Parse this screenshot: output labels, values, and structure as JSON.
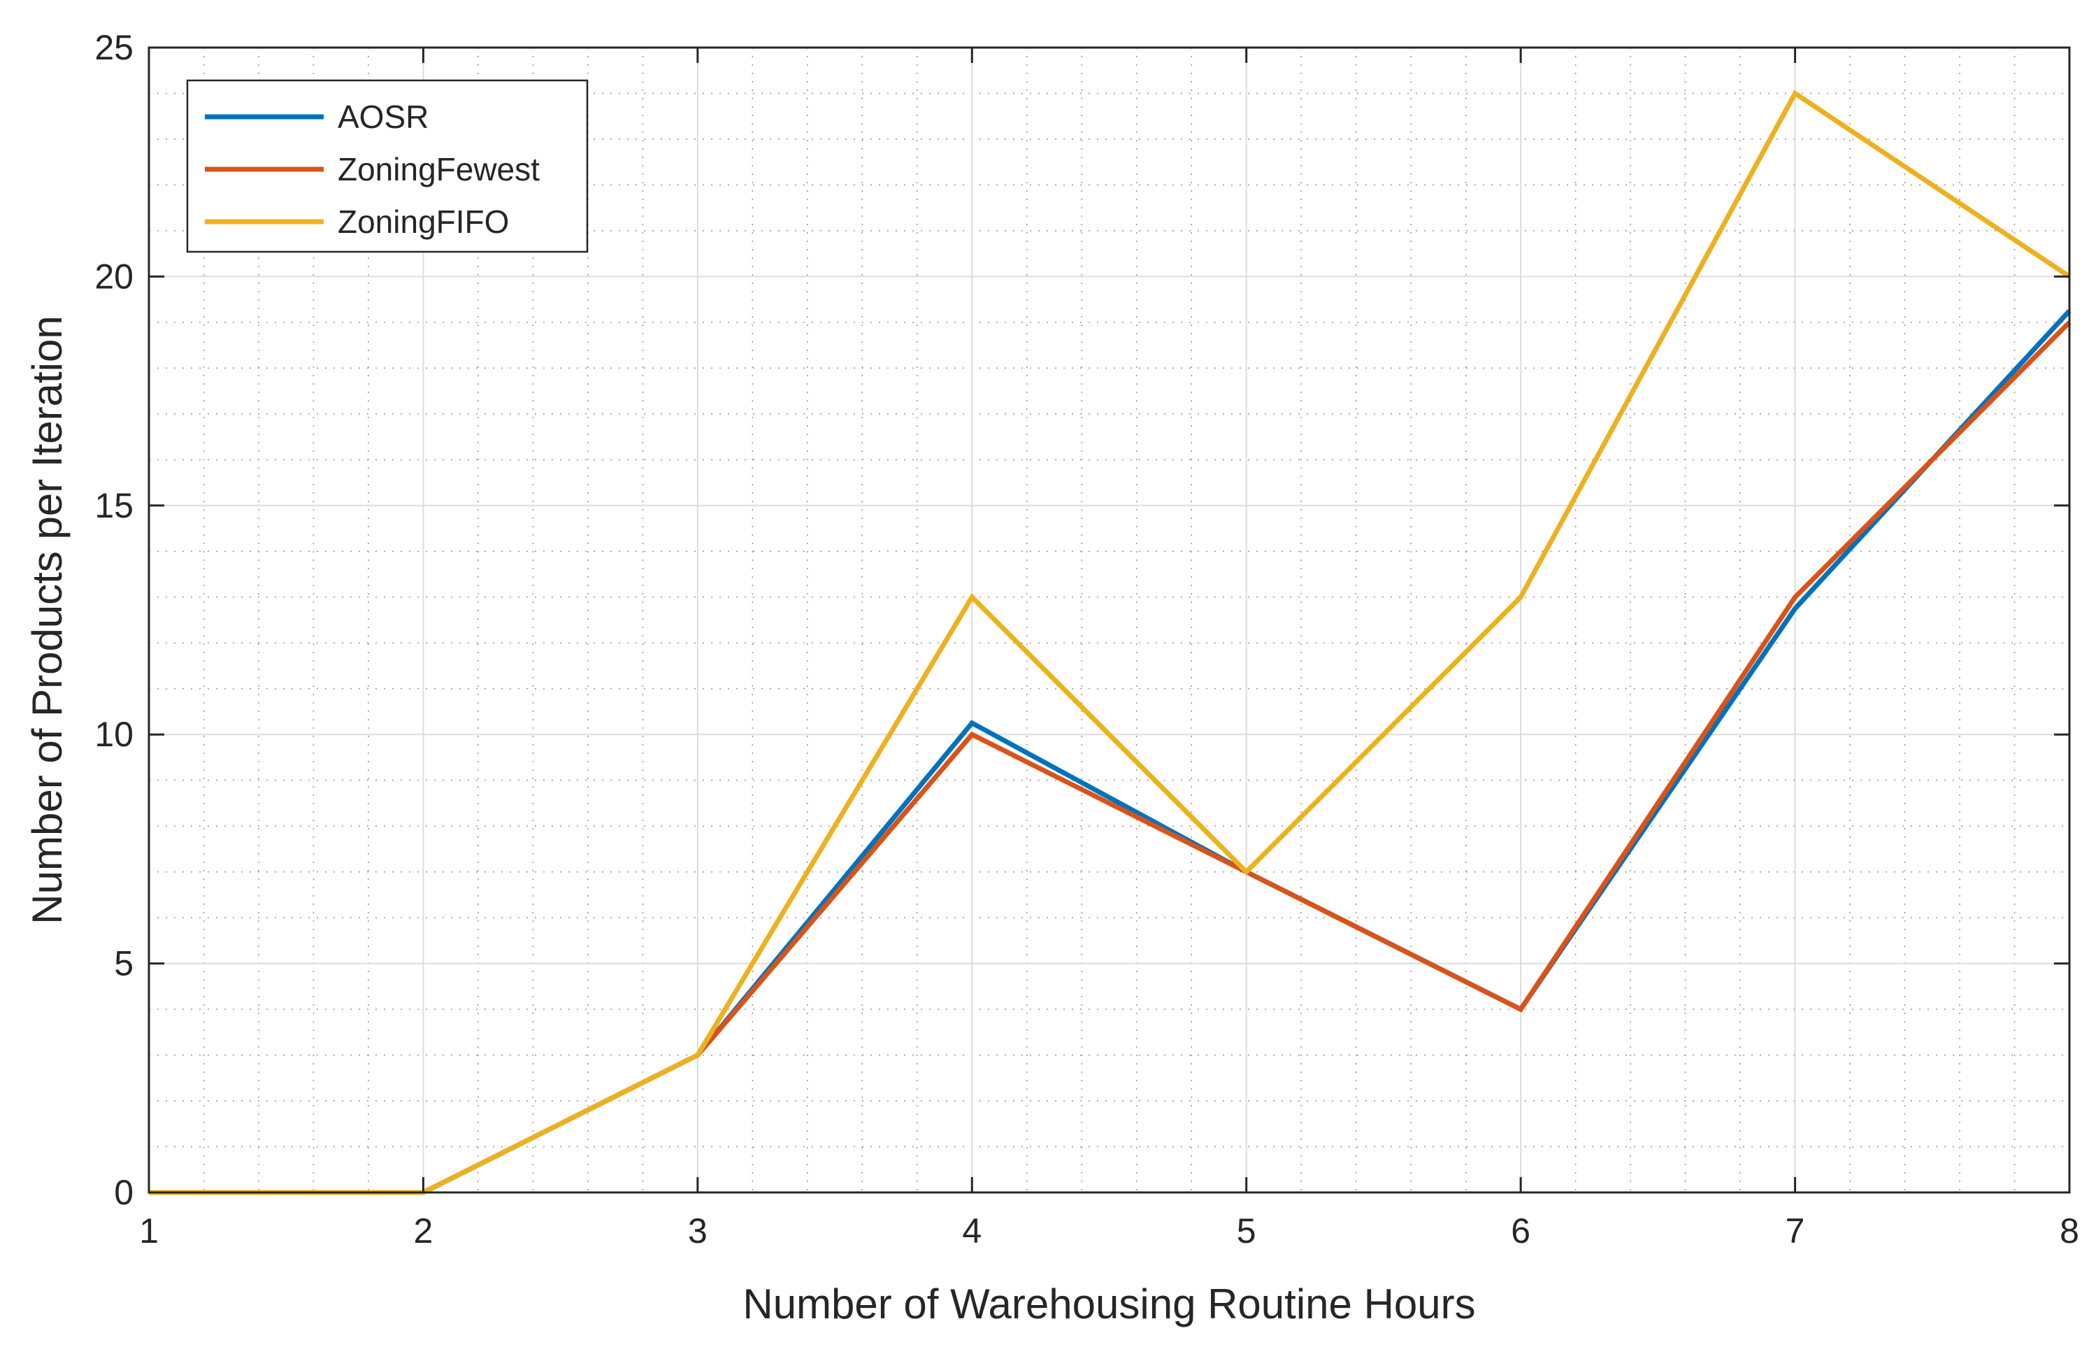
{
  "chart_data": {
    "type": "line",
    "title": "",
    "xlabel": "Number of Warehousing Routine Hours",
    "ylabel": "Number of Products per Iteration",
    "xlim": [
      1,
      8
    ],
    "ylim": [
      0,
      25
    ],
    "xticks": [
      1,
      2,
      3,
      4,
      5,
      6,
      7,
      8
    ],
    "yticks": [
      0,
      5,
      10,
      15,
      20,
      25
    ],
    "grid": true,
    "minor_grid": true,
    "legend_position": "top-left",
    "x": [
      1,
      2,
      3,
      4,
      5,
      6,
      7,
      8
    ],
    "series": [
      {
        "name": "AOSR",
        "color": "#0072BD",
        "values": [
          0,
          0,
          3,
          10.25,
          7,
          4,
          12.75,
          19.25
        ]
      },
      {
        "name": "ZoningFewest",
        "color": "#D95319",
        "values": [
          0,
          0,
          3,
          10,
          7,
          4,
          13,
          19
        ]
      },
      {
        "name": "ZoningFIFO",
        "color": "#EDB120",
        "values": [
          0,
          0,
          3,
          13,
          7,
          13,
          24,
          20
        ]
      }
    ]
  }
}
